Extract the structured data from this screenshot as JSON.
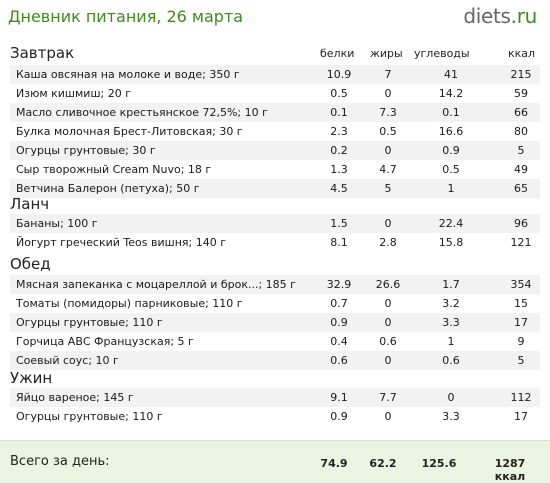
{
  "header": {
    "title": "Дневник питания, 26 марта",
    "brand_main": "diets",
    "brand_tld": ".ru"
  },
  "columns": {
    "protein": "белки",
    "fat": "жиры",
    "carbs": "углеводы",
    "kcal": "ккал"
  },
  "meals": [
    {
      "title": "Завтрак",
      "items": [
        {
          "name": "Каша овсяная на молоке и воде; 350 г",
          "protein": "10.9",
          "fat": "7",
          "carbs": "41",
          "kcal": "215"
        },
        {
          "name": "Изюм кишмиш; 20 г",
          "protein": "0.5",
          "fat": "0",
          "carbs": "14.2",
          "kcal": "59"
        },
        {
          "name": "Масло сливочное крестьянское 72,5%; 10 г",
          "protein": "0.1",
          "fat": "7.3",
          "carbs": "0.1",
          "kcal": "66"
        },
        {
          "name": "Булка молочная Брест-Литовская; 30 г",
          "protein": "2.3",
          "fat": "0.5",
          "carbs": "16.6",
          "kcal": "80"
        },
        {
          "name": "Огурцы грунтовые; 30 г",
          "protein": "0.2",
          "fat": "0",
          "carbs": "0.9",
          "kcal": "5"
        },
        {
          "name": "Сыр творожный Cream Nuvo; 18 г",
          "protein": "1.3",
          "fat": "4.7",
          "carbs": "0.5",
          "kcal": "49"
        },
        {
          "name": "Ветчина Балерон (петуха); 50 г",
          "protein": "4.5",
          "fat": "5",
          "carbs": "1",
          "kcal": "65"
        }
      ]
    },
    {
      "title": "Ланч",
      "items": [
        {
          "name": "Бананы; 100 г",
          "protein": "1.5",
          "fat": "0",
          "carbs": "22.4",
          "kcal": "96"
        },
        {
          "name": "Йогурт греческий Teos вишня; 140 г",
          "protein": "8.1",
          "fat": "2.8",
          "carbs": "15.8",
          "kcal": "121"
        }
      ]
    },
    {
      "title": "Обед",
      "items": [
        {
          "name": "Мясная запеканка с моцареллой и брок...; 185 г",
          "protein": "32.9",
          "fat": "26.6",
          "carbs": "1.7",
          "kcal": "354"
        },
        {
          "name": "Томаты (помидоры) парниковые; 110 г",
          "protein": "0.7",
          "fat": "0",
          "carbs": "3.2",
          "kcal": "15"
        },
        {
          "name": "Огурцы грунтовые; 110 г",
          "protein": "0.9",
          "fat": "0",
          "carbs": "3.3",
          "kcal": "17"
        },
        {
          "name": "Горчица АВС Французская; 5 г",
          "protein": "0.4",
          "fat": "0.6",
          "carbs": "1",
          "kcal": "9"
        },
        {
          "name": "Соевый соус; 10 г",
          "protein": "0.6",
          "fat": "0",
          "carbs": "0.6",
          "kcal": "5"
        }
      ]
    },
    {
      "title": "Ужин",
      "items": [
        {
          "name": "Яйцо вареное; 145 г",
          "protein": "9.1",
          "fat": "7.7",
          "carbs": "0",
          "kcal": "112"
        },
        {
          "name": "Огурцы грунтовые; 110 г",
          "protein": "0.9",
          "fat": "0",
          "carbs": "3.3",
          "kcal": "17"
        }
      ]
    }
  ],
  "totals": {
    "label": "Всего за день:",
    "protein": "74.9",
    "fat": "62.2",
    "carbs": "125.6",
    "kcal": "1287 ккал"
  }
}
